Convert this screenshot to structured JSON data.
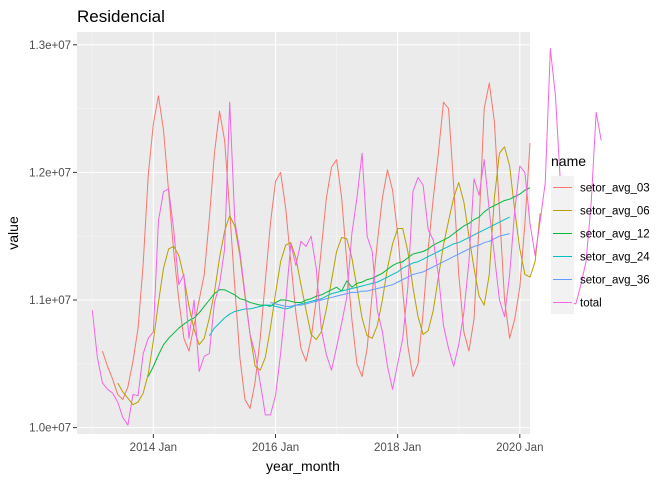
{
  "chart_data": {
    "type": "line",
    "title": "Residencial",
    "xlabel": "year_month",
    "ylabel": "value",
    "x_start": "2013-01",
    "xlim": [
      "2012-10",
      "2020-03"
    ],
    "ylim": [
      9950000,
      13100000
    ],
    "x_ticks": [
      {
        "date": "2014-01",
        "label": "2014 Jan"
      },
      {
        "date": "2016-01",
        "label": "2016 Jan"
      },
      {
        "date": "2018-01",
        "label": "2018 Jan"
      },
      {
        "date": "2020-01",
        "label": "2020 Jan"
      }
    ],
    "y_ticks": [
      {
        "value": 10000000,
        "label": "1.0e+07"
      },
      {
        "value": 11000000,
        "label": "1.1e+07"
      },
      {
        "value": 12000000,
        "label": "1.2e+07"
      },
      {
        "value": 13000000,
        "label": "1.3e+07"
      }
    ],
    "grid": true,
    "legend_title": "name",
    "legend_position": "right",
    "series": [
      {
        "name": "setor_avg_03",
        "color": "#F8766D",
        "start": "2013-03",
        "values": [
          10600000,
          10480000,
          10380000,
          10260000,
          10220000,
          10320000,
          10520000,
          10780000,
          11280000,
          11980000,
          12380000,
          12600000,
          12330000,
          11850000,
          11380000,
          11000000,
          10700000,
          10600000,
          10800000,
          11000000,
          11200000,
          11640000,
          12150000,
          12480000,
          12250000,
          11700000,
          11100000,
          10550000,
          10220000,
          10150000,
          10360000,
          10700000,
          11150000,
          11600000,
          11930000,
          12000000,
          11720000,
          11300000,
          10900000,
          10620000,
          10520000,
          10700000,
          11000000,
          11400000,
          11800000,
          12040000,
          12100000,
          11800000,
          11300000,
          10850000,
          10500000,
          10400000,
          10620000,
          11050000,
          11450000,
          11800000,
          12020000,
          11860000,
          11520000,
          11070000,
          10640000,
          10400000,
          10500000,
          10900000,
          11400000,
          11800000,
          12150000,
          12550000,
          12500000,
          11900000,
          11200000,
          10750000,
          10600000,
          10850000,
          11600000,
          12500000,
          12700000,
          12400000,
          11700000,
          11000000,
          10700000,
          10850000,
          11100000,
          11600000,
          12230000
        ]
      },
      {
        "name": "setor_avg_06",
        "color": "#B79F00",
        "start": "2013-06",
        "values": [
          10350000,
          10280000,
          10230000,
          10180000,
          10200000,
          10270000,
          10420000,
          10680000,
          10980000,
          11250000,
          11400000,
          11420000,
          11350000,
          11180000,
          10950000,
          10770000,
          10650000,
          10700000,
          10860000,
          11060000,
          11330000,
          11540000,
          11660000,
          11580000,
          11350000,
          11030000,
          10730000,
          10480000,
          10450000,
          10550000,
          10780000,
          11050000,
          11300000,
          11430000,
          11450000,
          11330000,
          11120000,
          10920000,
          10730000,
          10690000,
          10750000,
          10930000,
          11150000,
          11380000,
          11490000,
          11480000,
          11330000,
          11100000,
          10860000,
          10720000,
          10700000,
          10800000,
          11000000,
          11250000,
          11440000,
          11560000,
          11560000,
          11380000,
          11100000,
          10870000,
          10730000,
          10760000,
          10920000,
          11180000,
          11430000,
          11620000,
          11800000,
          11920000,
          11770000,
          11500000,
          11250000,
          11030000,
          10960000,
          11200000,
          11800000,
          12150000,
          12200000,
          12050000,
          11700000,
          11400000,
          11200000,
          11180000,
          11300000,
          11680000
        ]
      },
      {
        "name": "setor_avg_12",
        "color": "#00BA38",
        "start": "2013-12",
        "values": [
          10400000,
          10480000,
          10570000,
          10650000,
          10700000,
          10740000,
          10780000,
          10810000,
          10840000,
          10860000,
          10900000,
          10950000,
          11000000,
          11050000,
          11080000,
          11080000,
          11060000,
          11040000,
          11010000,
          11000000,
          10980000,
          10970000,
          10960000,
          10960000,
          10950000,
          10980000,
          11000000,
          11000000,
          10990000,
          10980000,
          10980000,
          11000000,
          11010000,
          11030000,
          11040000,
          11060000,
          11080000,
          11100000,
          11070000,
          11150000,
          11100000,
          11130000,
          11140000,
          11160000,
          11170000,
          11190000,
          11210000,
          11240000,
          11270000,
          11290000,
          11300000,
          11330000,
          11360000,
          11370000,
          11380000,
          11400000,
          11430000,
          11450000,
          11470000,
          11490000,
          11520000,
          11550000,
          11580000,
          11600000,
          11630000,
          11650000,
          11690000,
          11720000,
          11740000,
          11760000,
          11780000,
          11790000,
          11810000,
          11830000,
          11860000,
          11880000
        ]
      },
      {
        "name": "setor_avg_24",
        "color": "#00BFC4",
        "start": "2014-12",
        "values": [
          10720000,
          10780000,
          10820000,
          10860000,
          10890000,
          10910000,
          10920000,
          10930000,
          10930000,
          10940000,
          10950000,
          10960000,
          10960000,
          10950000,
          10940000,
          10930000,
          10940000,
          10960000,
          10970000,
          10980000,
          10990000,
          11000000,
          11010000,
          11030000,
          11050000,
          11060000,
          11070000,
          11080000,
          11090000,
          11100000,
          11110000,
          11120000,
          11130000,
          11140000,
          11160000,
          11180000,
          11200000,
          11220000,
          11250000,
          11270000,
          11290000,
          11300000,
          11320000,
          11340000,
          11360000,
          11380000,
          11400000,
          11420000,
          11440000,
          11450000,
          11470000,
          11490000,
          11510000,
          11530000,
          11550000,
          11570000,
          11590000,
          11610000,
          11630000,
          11650000
        ]
      },
      {
        "name": "setor_avg_36",
        "color": "#619CFF",
        "start": "2015-12",
        "values": [
          10980000,
          10970000,
          10960000,
          10950000,
          10950000,
          10960000,
          10960000,
          10970000,
          10980000,
          10990000,
          11000000,
          11010000,
          11020000,
          11030000,
          11040000,
          11050000,
          11060000,
          11060000,
          11070000,
          11070000,
          11080000,
          11090000,
          11100000,
          11110000,
          11120000,
          11140000,
          11160000,
          11180000,
          11200000,
          11210000,
          11220000,
          11240000,
          11260000,
          11280000,
          11300000,
          11320000,
          11340000,
          11360000,
          11380000,
          11400000,
          11420000,
          11430000,
          11450000,
          11460000,
          11480000,
          11500000,
          11510000,
          11520000
        ]
      },
      {
        "name": "total",
        "color": "#F564E3",
        "start": "2013-01",
        "values": [
          10920000,
          10550000,
          10350000,
          10300000,
          10270000,
          10200000,
          10080000,
          10020000,
          10260000,
          10250000,
          10580000,
          10700000,
          10750000,
          11620000,
          11850000,
          11870000,
          11550000,
          11120000,
          11200000,
          10700000,
          11000000,
          10440000,
          10560000,
          10580000,
          10980000,
          11120000,
          11400000,
          12550000,
          11620000,
          11380000,
          11050000,
          10730000,
          10580000,
          10350000,
          10100000,
          10100000,
          10250000,
          10580000,
          10980000,
          11440000,
          11270000,
          11460000,
          11420000,
          11500000,
          11250000,
          10770000,
          10570000,
          10450000,
          10630000,
          10820000,
          11020000,
          11520000,
          11800000,
          12150000,
          11500000,
          11380000,
          10920000,
          10750000,
          10480000,
          10300000,
          10500000,
          10700000,
          11100000,
          11850000,
          11960000,
          11900000,
          11550000,
          11470000,
          11200000,
          10800000,
          10620000,
          10480000,
          10650000,
          10900000,
          11300000,
          11950000,
          11820000,
          12100000,
          11700000,
          11350000,
          11000000,
          10870000,
          11200000,
          11700000,
          12050000,
          12000000,
          11600000,
          11350000,
          11620000,
          11920000,
          12970000,
          12600000,
          11900000,
          11100000,
          10980000,
          10970000,
          11120000,
          11300000,
          11750000,
          12470000,
          12250000
        ]
      }
    ]
  }
}
